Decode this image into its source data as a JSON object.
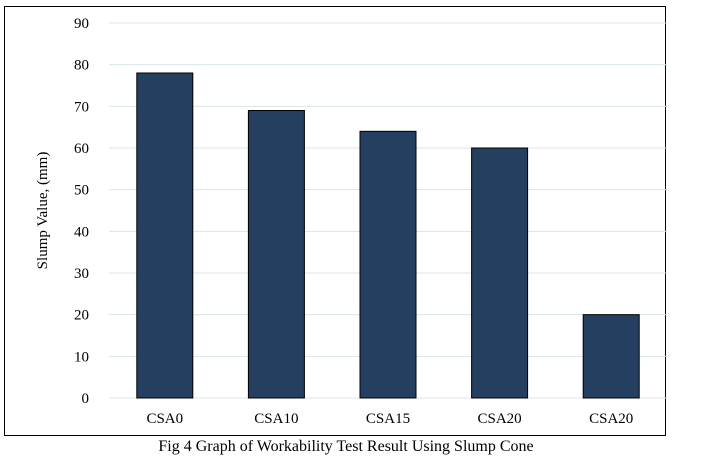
{
  "caption": "Fig 4 Graph of Workability Test Result Using Slump Cone",
  "chart_data": {
    "type": "bar",
    "categories": [
      "CSA0",
      "CSA10",
      "CSA15",
      "CSA20",
      "CSA20"
    ],
    "values": [
      78,
      69,
      64,
      60,
      20
    ],
    "ylabel": "Slump Value, (mm)",
    "xlabel": "",
    "ylim": [
      0,
      90
    ],
    "yticks": [
      0,
      10,
      20,
      30,
      40,
      50,
      60,
      70,
      80,
      90
    ],
    "grid": true,
    "legend": "none",
    "bar_color": "#243f60",
    "bar_edge_color": "#000000",
    "grid_color": "#d9e6ec"
  }
}
